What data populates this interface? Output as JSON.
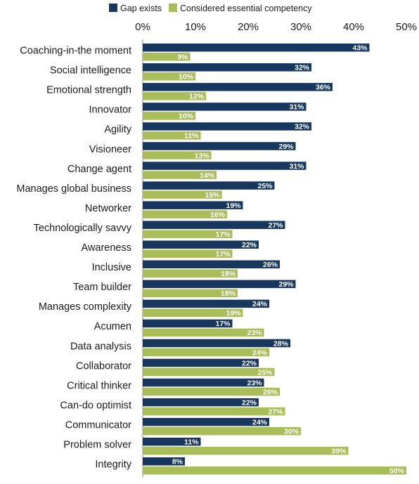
{
  "chart_data": {
    "type": "bar",
    "orientation": "horizontal",
    "title": "",
    "xlabel": "",
    "ylabel": "",
    "xlim": [
      0,
      50
    ],
    "ticks": [
      0,
      10,
      20,
      30,
      40,
      50
    ],
    "tick_labels": [
      "0%",
      "10%",
      "20%",
      "30%",
      "40%",
      "50%"
    ],
    "axis_position": "top",
    "grid": false,
    "legend_position": "top",
    "categories": [
      "Coaching-in-the moment",
      "Social intelligence",
      "Emotional strength",
      "Innovator",
      "Agility",
      "Visioneer",
      "Change agent",
      "Manages global business",
      "Networker",
      "Technologically savvy",
      "Awareness",
      "Inclusive",
      "Team builder",
      "Manages complexity",
      "Acumen",
      "Data analysis",
      "Collaborator",
      "Critical thinker",
      "Can-do optimist",
      "Communicator",
      "Problem solver",
      "Integrity"
    ],
    "series": [
      {
        "name": "Gap exists",
        "color": "#17375e",
        "values": [
          43,
          32,
          36,
          31,
          32,
          29,
          31,
          25,
          19,
          27,
          22,
          26,
          29,
          24,
          17,
          28,
          22,
          23,
          22,
          24,
          11,
          8
        ]
      },
      {
        "name": "Considered essential competency",
        "color": "#a9bd5b",
        "values": [
          9,
          10,
          12,
          10,
          11,
          13,
          14,
          15,
          16,
          17,
          17,
          18,
          18,
          19,
          23,
          24,
          25,
          26,
          27,
          30,
          39,
          50
        ]
      }
    ]
  }
}
